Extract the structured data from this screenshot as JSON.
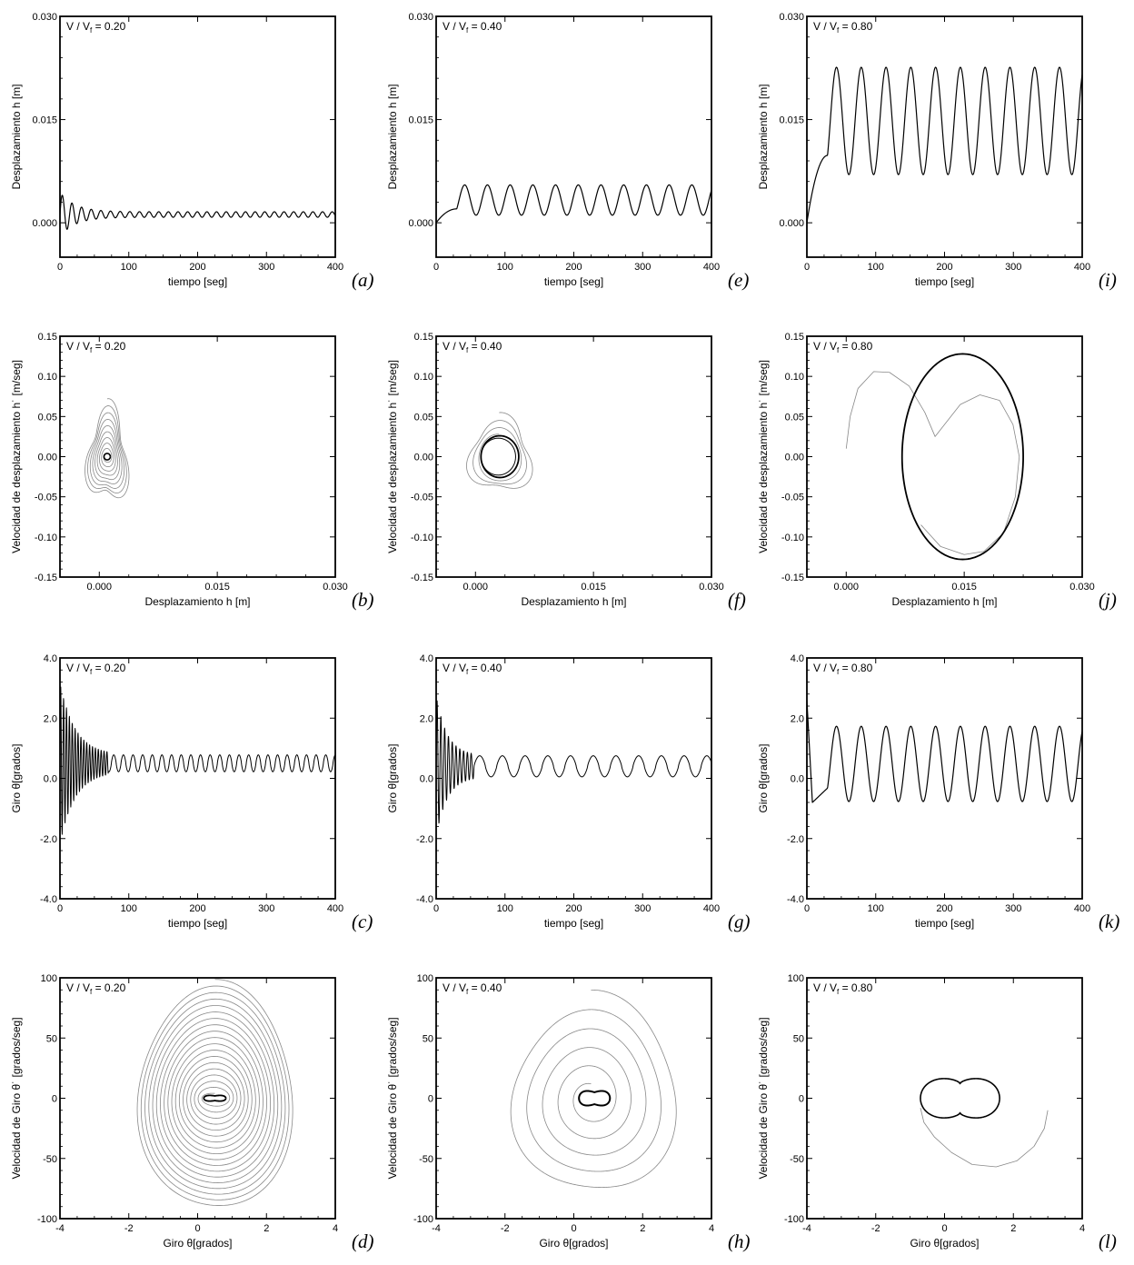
{
  "chart_data": [
    {
      "id": "a",
      "type": "line",
      "letter": "(a)",
      "annotation": {
        "main": "V / V",
        "sub": "f",
        "value": " = 0.20"
      },
      "xlabel": "tiempo [seg]",
      "ylabel": "Desplazamiento h [m]",
      "xlim": [
        0,
        400
      ],
      "ylim": [
        -0.005,
        0.03
      ],
      "xticks": [
        0,
        100,
        200,
        300,
        400
      ],
      "xtick_labels": [
        "0",
        "100",
        "200",
        "300",
        "400"
      ],
      "yticks": [
        0,
        0.015,
        0.03
      ],
      "ytick_labels": [
        "0.000",
        "0.015",
        "0.030"
      ],
      "grid": false,
      "series": [
        {
          "kind": "decay",
          "offset": 0.0012,
          "a0": 0.0028,
          "tau": 22,
          "a1": 0.0004,
          "period": 14,
          "tmax": 400,
          "width": 1.2,
          "color": "#000000"
        }
      ]
    },
    {
      "id": "b",
      "type": "line",
      "letter": "(b)",
      "annotation": {
        "main": "V / V",
        "sub": "f",
        "value": " = 0.20"
      },
      "xlabel": "Desplazamiento h [m]",
      "ylabel": "Velocidad de desplazamiento h˙ [m/seg]",
      "xlim": [
        -0.005,
        0.03
      ],
      "ylim": [
        -0.15,
        0.15
      ],
      "xticks": [
        0,
        0.015,
        0.03
      ],
      "xtick_labels": [
        "0.000",
        "0.015",
        "0.030"
      ],
      "yticks": [
        -0.15,
        -0.1,
        -0.05,
        0,
        0.05,
        0.1,
        0.15
      ],
      "ytick_labels": [
        "-0.15",
        "-0.10",
        "-0.05",
        "0.00",
        "0.05",
        "0.10",
        "0.15"
      ],
      "grid": false,
      "series": [
        {
          "kind": "spiral",
          "cx": 0.001,
          "cy": 0.0,
          "rx0": 0.0026,
          "ry0": 0.058,
          "rx1": 0.0004,
          "ry1": 0.004,
          "turns": 9,
          "wobble": 0.25,
          "width": 0.8,
          "color": "#888888"
        },
        {
          "kind": "ellipse",
          "cx": 0.001,
          "cy": 0.0,
          "rx": 0.0004,
          "ry": 0.004,
          "width": 1.6,
          "color": "#000000"
        }
      ]
    },
    {
      "id": "c",
      "type": "line",
      "letter": "(c)",
      "annotation": {
        "main": "V / V",
        "sub": "f",
        "value": " = 0.20"
      },
      "xlabel": "tiempo [seg]",
      "ylabel": "Giro θ[grados]",
      "xlim": [
        0,
        400
      ],
      "ylim": [
        -4,
        4
      ],
      "xticks": [
        0,
        100,
        200,
        300,
        400
      ],
      "xtick_labels": [
        "0",
        "100",
        "200",
        "300",
        "400"
      ],
      "yticks": [
        -4,
        -2,
        0,
        2,
        4
      ],
      "ytick_labels": [
        "-4.0",
        "-2.0",
        "0.0",
        "2.0",
        "4.0"
      ],
      "grid": false,
      "series": [
        {
          "kind": "decay",
          "offset": 0.5,
          "a0": 2.4,
          "tau": 22,
          "a1": 0.28,
          "period": 4.2,
          "period2": 14,
          "tswitch": 70,
          "tmax": 400,
          "width": 1.0,
          "color": "#000000"
        }
      ]
    },
    {
      "id": "d",
      "type": "line",
      "letter": "(d)",
      "annotation": {
        "main": "V / V",
        "sub": "f",
        "value": " = 0.20"
      },
      "xlabel": "Giro θ[grados]",
      "ylabel": "Velocidad de Giro θ˙ [grados/seg]",
      "xlim": [
        -4,
        4
      ],
      "ylim": [
        -100,
        100
      ],
      "xticks": [
        -4,
        -2,
        0,
        2,
        4
      ],
      "xtick_labels": [
        "-4",
        "-2",
        "0",
        "2",
        "4"
      ],
      "yticks": [
        -100,
        -50,
        0,
        50,
        100
      ],
      "ytick_labels": [
        "-100",
        "-50",
        "0",
        "50",
        "100"
      ],
      "grid": false,
      "series": [
        {
          "kind": "spiral",
          "cx": 0.5,
          "cy": 0,
          "rx0": 2.3,
          "ry0": 95,
          "rx1": 0.35,
          "ry1": 4,
          "turns": 18,
          "wobble": 0.04,
          "width": 0.8,
          "color": "#888888"
        },
        {
          "kind": "eight",
          "cx": 0.5,
          "cy": 0,
          "rx": 0.32,
          "ry": 3.5,
          "width": 1.8,
          "color": "#000000"
        }
      ]
    },
    {
      "id": "e",
      "type": "line",
      "letter": "(e)",
      "annotation": {
        "main": "V / V",
        "sub": "f",
        "value": " = 0.40"
      },
      "xlabel": "tiempo [seg]",
      "ylabel": "Desplazamiento h [m]",
      "xlim": [
        0,
        400
      ],
      "ylim": [
        -0.005,
        0.03
      ],
      "xticks": [
        0,
        100,
        200,
        300,
        400
      ],
      "xtick_labels": [
        "0",
        "100",
        "200",
        "300",
        "400"
      ],
      "yticks": [
        0,
        0.015,
        0.03
      ],
      "ytick_labels": [
        "0.000",
        "0.015",
        "0.030"
      ],
      "grid": false,
      "series": [
        {
          "kind": "periodic",
          "offset": 0.0033,
          "amp": 0.0022,
          "period": 33,
          "rise": 0.0065,
          "tmax": 400,
          "width": 1.2,
          "color": "#000000"
        }
      ]
    },
    {
      "id": "f",
      "type": "line",
      "letter": "(f)",
      "annotation": {
        "main": "V / V",
        "sub": "f",
        "value": " = 0.40"
      },
      "xlabel": "Desplazamiento h [m]",
      "ylabel": "Velocidad de desplazamiento h˙ [m/seg]",
      "xlim": [
        -0.005,
        0.03
      ],
      "ylim": [
        -0.15,
        0.15
      ],
      "xticks": [
        0,
        0.015,
        0.03
      ],
      "xtick_labels": [
        "0.000",
        "0.015",
        "0.030"
      ],
      "yticks": [
        -0.15,
        -0.1,
        -0.05,
        0,
        0.05,
        0.1,
        0.15
      ],
      "ytick_labels": [
        "-0.15",
        "-0.10",
        "-0.05",
        "0.00",
        "0.05",
        "0.10",
        "0.15"
      ],
      "grid": false,
      "series": [
        {
          "kind": "spiral",
          "cx": 0.003,
          "cy": 0.0,
          "rx0": 0.0042,
          "ry0": 0.046,
          "rx1": 0.0024,
          "ry1": 0.028,
          "turns": 3,
          "wobble": 0.2,
          "width": 0.8,
          "color": "#888888"
        },
        {
          "kind": "ellipse",
          "cx": 0.0031,
          "cy": 0.0,
          "rx": 0.0024,
          "ry": 0.026,
          "width": 1.8,
          "color": "#000000"
        },
        {
          "kind": "ellipse",
          "cx": 0.0029,
          "cy": 0.0,
          "rx": 0.0022,
          "ry": 0.023,
          "width": 1.0,
          "color": "#000000"
        }
      ]
    },
    {
      "id": "g",
      "type": "line",
      "letter": "(g)",
      "annotation": {
        "main": "V / V",
        "sub": "f",
        "value": " = 0.40"
      },
      "xlabel": "tiempo [seg]",
      "ylabel": "Giro θ[grados]",
      "xlim": [
        0,
        400
      ],
      "ylim": [
        -4,
        4
      ],
      "xticks": [
        0,
        100,
        200,
        300,
        400
      ],
      "xtick_labels": [
        "0",
        "100",
        "200",
        "300",
        "400"
      ],
      "yticks": [
        -4,
        -2,
        0,
        2,
        4
      ],
      "ytick_labels": [
        "-4.0",
        "-2.0",
        "0.0",
        "2.0",
        "4.0"
      ],
      "grid": false,
      "series": [
        {
          "kind": "decay",
          "offset": 0.4,
          "a0": 2.0,
          "tau": 16,
          "a1": 0.35,
          "period": 5.5,
          "period2": 33,
          "tswitch": 55,
          "tmax": 400,
          "width": 1.0,
          "color": "#000000"
        }
      ]
    },
    {
      "id": "h",
      "type": "line",
      "letter": "(h)",
      "annotation": {
        "main": "V / V",
        "sub": "f",
        "value": " = 0.40"
      },
      "xlabel": "Giro θ[grados]",
      "ylabel": "Velocidad de Giro θ˙ [grados/seg]",
      "xlim": [
        -4,
        4
      ],
      "ylim": [
        -100,
        100
      ],
      "xticks": [
        -4,
        -2,
        0,
        2,
        4
      ],
      "xtick_labels": [
        "-4",
        "-2",
        "0",
        "2",
        "4"
      ],
      "yticks": [
        -100,
        -50,
        0,
        50,
        100
      ],
      "ytick_labels": [
        "-100",
        "-50",
        "0",
        "50",
        "100"
      ],
      "grid": false,
      "series": [
        {
          "kind": "spiral",
          "cx": 0.5,
          "cy": 0,
          "rx0": 2.6,
          "ry0": 85,
          "rx1": 0.4,
          "ry1": 12,
          "turns": 5,
          "wobble": 0.06,
          "width": 0.8,
          "color": "#888888"
        },
        {
          "kind": "eight",
          "cx": 0.6,
          "cy": 0,
          "rx": 0.45,
          "ry": 9,
          "width": 2.0,
          "color": "#000000"
        }
      ]
    },
    {
      "id": "i",
      "type": "line",
      "letter": "(i)",
      "annotation": {
        "main": "V / V",
        "sub": "f",
        "value": " = 0.80"
      },
      "xlabel": "tiempo [seg]",
      "ylabel": "Desplazamiento h [m]",
      "xlim": [
        0,
        400
      ],
      "ylim": [
        -0.005,
        0.03
      ],
      "xticks": [
        0,
        100,
        200,
        300,
        400
      ],
      "xtick_labels": [
        "0",
        "100",
        "200",
        "300",
        "400"
      ],
      "yticks": [
        0,
        0.015,
        0.03
      ],
      "ytick_labels": [
        "0.000",
        "0.015",
        "0.030"
      ],
      "grid": false,
      "series": [
        {
          "kind": "periodic",
          "offset": 0.0148,
          "amp": 0.0078,
          "period": 36,
          "rise": 0.0125,
          "tmax": 400,
          "width": 1.2,
          "color": "#000000"
        }
      ]
    },
    {
      "id": "j",
      "type": "line",
      "letter": "(j)",
      "annotation": {
        "main": "V / V",
        "sub": "f",
        "value": " = 0.80"
      },
      "xlabel": "Desplazamiento h [m]",
      "ylabel": "Velocidad de desplazamiento h˙ [m/seg]",
      "xlim": [
        -0.005,
        0.03
      ],
      "ylim": [
        -0.15,
        0.15
      ],
      "xticks": [
        0,
        0.015,
        0.03
      ],
      "xtick_labels": [
        "0.000",
        "0.015",
        "0.030"
      ],
      "yticks": [
        -0.15,
        -0.1,
        -0.05,
        0,
        0.05,
        0.1,
        0.15
      ],
      "ytick_labels": [
        "-0.15",
        "-0.10",
        "-0.05",
        "0.00",
        "0.05",
        "0.10",
        "0.15"
      ],
      "grid": false,
      "series": [
        {
          "kind": "points",
          "points": [
            [
              0.0,
              0.01
            ],
            [
              0.0005,
              0.05
            ],
            [
              0.0015,
              0.085
            ],
            [
              0.0035,
              0.106
            ],
            [
              0.0055,
              0.105
            ],
            [
              0.008,
              0.088
            ],
            [
              0.01,
              0.055
            ],
            [
              0.0113,
              0.025
            ],
            [
              0.0125,
              0.04
            ],
            [
              0.0145,
              0.065
            ],
            [
              0.017,
              0.077
            ],
            [
              0.0195,
              0.07
            ],
            [
              0.0212,
              0.04
            ],
            [
              0.022,
              0.0
            ],
            [
              0.0215,
              -0.05
            ],
            [
              0.02,
              -0.095
            ],
            [
              0.0175,
              -0.118
            ],
            [
              0.015,
              -0.122
            ],
            [
              0.012,
              -0.112
            ],
            [
              0.0095,
              -0.085
            ]
          ],
          "width": 0.8,
          "color": "#888888"
        },
        {
          "kind": "ellipse",
          "cx": 0.0148,
          "cy": 0.0,
          "rx": 0.0077,
          "ry": 0.128,
          "width": 1.8,
          "color": "#000000"
        }
      ]
    },
    {
      "id": "k",
      "type": "line",
      "letter": "(k)",
      "annotation": {
        "main": "V / V",
        "sub": "f",
        "value": " = 0.80"
      },
      "xlabel": "tiempo [seg]",
      "ylabel": "Giro θ[grados]",
      "xlim": [
        0,
        400
      ],
      "ylim": [
        -4,
        4
      ],
      "xticks": [
        0,
        100,
        200,
        300,
        400
      ],
      "xtick_labels": [
        "0",
        "100",
        "200",
        "300",
        "400"
      ],
      "yticks": [
        -4,
        -2,
        0,
        2,
        4
      ],
      "ytick_labels": [
        "-4.0",
        "-2.0",
        "0.0",
        "2.0",
        "4.0"
      ],
      "grid": false,
      "series": [
        {
          "kind": "periodic",
          "offset": 0.48,
          "amp": 1.25,
          "period": 36,
          "rise": 0,
          "start": 2.6,
          "tmax": 400,
          "width": 1.2,
          "color": "#000000"
        }
      ]
    },
    {
      "id": "l",
      "type": "line",
      "letter": "(l)",
      "annotation": {
        "main": "V / V",
        "sub": "f",
        "value": " = 0.80"
      },
      "xlabel": "Giro θ[grados]",
      "ylabel": "Velocidad de Giro θ˙ [grados/seg]",
      "xlim": [
        -4,
        4
      ],
      "ylim": [
        -100,
        100
      ],
      "xticks": [
        -4,
        -2,
        0,
        2,
        4
      ],
      "xtick_labels": [
        "-4",
        "-2",
        "0",
        "2",
        "4"
      ],
      "yticks": [
        -100,
        -50,
        0,
        50,
        100
      ],
      "ytick_labels": [
        "-100",
        "-50",
        "0",
        "50",
        "100"
      ],
      "grid": false,
      "series": [
        {
          "kind": "points",
          "points": [
            [
              3.0,
              -10
            ],
            [
              2.9,
              -25
            ],
            [
              2.6,
              -40
            ],
            [
              2.1,
              -52
            ],
            [
              1.5,
              -57
            ],
            [
              0.8,
              -55
            ],
            [
              0.2,
              -45
            ],
            [
              -0.3,
              -32
            ],
            [
              -0.6,
              -20
            ],
            [
              -0.7,
              -8
            ]
          ],
          "width": 0.8,
          "color": "#888888"
        },
        {
          "kind": "peanut",
          "cx": 0.45,
          "cy": 0,
          "rx": 1.15,
          "ry": 22,
          "width": 1.6,
          "color": "#000000"
        }
      ]
    }
  ]
}
